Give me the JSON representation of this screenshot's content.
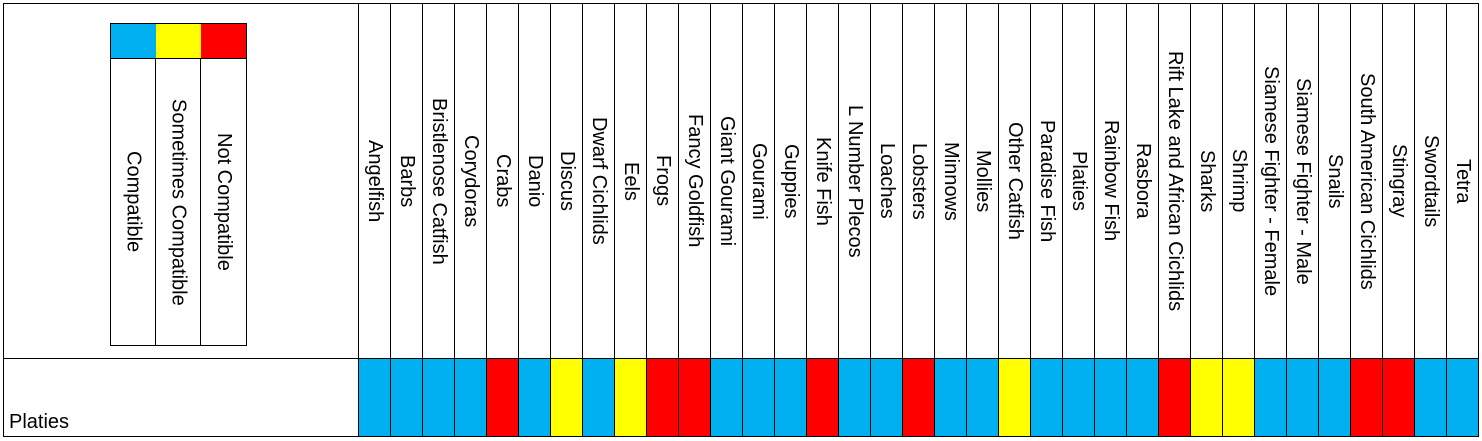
{
  "legend": [
    {
      "label": "Compatible",
      "color": "#00b0f0"
    },
    {
      "label": "Sometimes Compatible",
      "color": "#ffff00"
    },
    {
      "label": "Not Compatible",
      "color": "#ff0000"
    }
  ],
  "table": {
    "columns": [
      "Angelfish",
      "Barbs",
      "Bristlenose Catfish",
      "Corydoras",
      "Crabs",
      "Danio",
      "Discus",
      "Dwarf Cichlids",
      "Eels",
      "Frogs",
      "Fancy Goldfish",
      "Giant Gourami",
      "Gourami",
      "Guppies",
      "Knife Fish",
      "L Number Plecos",
      "Loaches",
      "Lobsters",
      "Minnows",
      "Mollies",
      "Other Catfish",
      "Paradise Fish",
      "Platies",
      "Rainbow Fish",
      "Rasbora",
      "Rift Lake and African Cichlids",
      "Sharks",
      "Shrimp",
      "Siamese Fighter - Female",
      "Siamese Fighter - Male",
      "Snails",
      "South American Cichlids",
      "Stingray",
      "Swordtails",
      "Tetra"
    ],
    "rows": [
      {
        "label": "Platies",
        "cells": [
          "#00b0f0",
          "#00b0f0",
          "#00b0f0",
          "#00b0f0",
          "#ff0000",
          "#00b0f0",
          "#ffff00",
          "#00b0f0",
          "#ffff00",
          "#ff0000",
          "#ff0000",
          "#00b0f0",
          "#00b0f0",
          "#00b0f0",
          "#ff0000",
          "#00b0f0",
          "#00b0f0",
          "#ff0000",
          "#00b0f0",
          "#00b0f0",
          "#ffff00",
          "#00b0f0",
          "#00b0f0",
          "#00b0f0",
          "#00b0f0",
          "#ff0000",
          "#ffff00",
          "#ffff00",
          "#00b0f0",
          "#00b0f0",
          "#00b0f0",
          "#ff0000",
          "#ff0000",
          "#00b0f0",
          "#00b0f0"
        ]
      }
    ]
  }
}
